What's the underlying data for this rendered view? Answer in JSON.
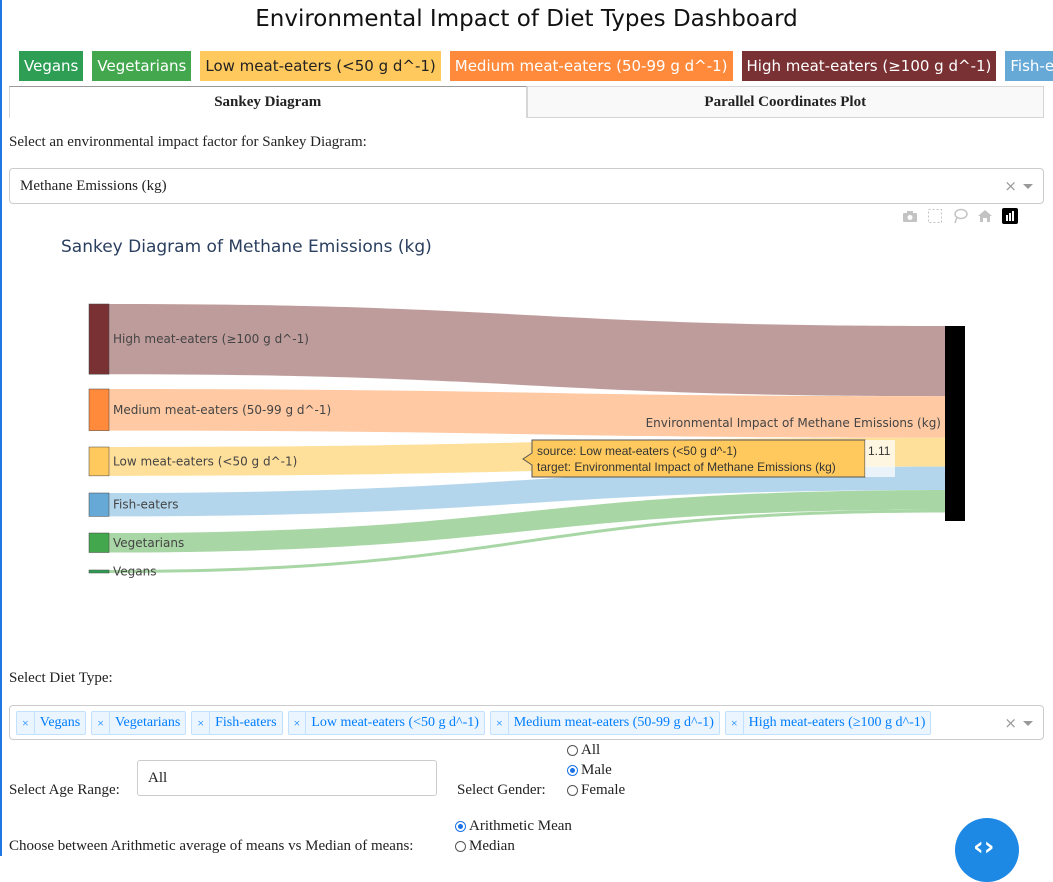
{
  "title": "Environmental Impact of Diet Types Dashboard",
  "legend": [
    {
      "label": "Vegans",
      "color": "#2e9e55"
    },
    {
      "label": "Vegetarians",
      "color": "#43a84d"
    },
    {
      "label": "Low meat-eaters (<50 g d^-1)",
      "color": "#ffc95e",
      "dark_text": true
    },
    {
      "label": "Medium meat-eaters (50-99 g d^-1)",
      "color": "#ff8a3c"
    },
    {
      "label": "High meat-eaters (≥100 g d^-1)",
      "color": "#7a3134"
    },
    {
      "label": "Fish-eaters",
      "color": "#66a9d6"
    }
  ],
  "tabs": {
    "sankey": "Sankey Diagram",
    "parallel": "Parallel Coordinates Plot"
  },
  "factor": {
    "label": "Select an environmental impact factor for Sankey Diagram:",
    "value": "Methane Emissions (kg)"
  },
  "chart_data": {
    "type": "sankey",
    "title": "Sankey Diagram of Methane Emissions (kg)",
    "target": "Environmental Impact of Methane Emissions (kg)",
    "nodes": [
      {
        "label": "High meat-eaters (≥100 g d^-1)",
        "color": "#7a3134",
        "link_color": "#bf9c9c",
        "value": 2.7
      },
      {
        "label": "Medium meat-eaters (50-99 g d^-1)",
        "color": "#ff8a3c",
        "link_color": "#ffc9a3",
        "value": 1.6
      },
      {
        "label": "Low meat-eaters (<50 g d^-1)",
        "color": "#ffc95e",
        "link_color": "#ffe09a",
        "value": 1.11
      },
      {
        "label": "Fish-eaters",
        "color": "#66a9d6",
        "link_color": "#b4d6ec",
        "value": 0.9
      },
      {
        "label": "Vegetarians",
        "color": "#43a84d",
        "link_color": "#a8d7a5",
        "value": 0.75
      },
      {
        "label": "Vegans",
        "color": "#2e9e55",
        "link_color": "#a8d7a5",
        "value": 0.1
      }
    ],
    "tooltip": {
      "source": "source: Low meat-eaters (<50 g d^-1)",
      "target": "target: Environmental Impact of Methane Emissions (kg)",
      "value": "1.11"
    }
  },
  "filters": {
    "diet_label": "Select Diet Type:",
    "diet_chips": [
      "Vegans",
      "Vegetarians",
      "Fish-eaters",
      "Low meat-eaters (<50 g d^-1)",
      "Medium meat-eaters (50-99 g d^-1)",
      "High meat-eaters (≥100 g d^-1)"
    ],
    "age_label": "Select Age Range:",
    "age_value": "All",
    "gender_label": "Select Gender:",
    "gender_options": [
      "All",
      "Male",
      "Female"
    ],
    "gender_selected": "Male",
    "avg_label": "Choose between Arithmetic average of means vs Median of means:",
    "avg_options": [
      "Arithmetic Mean",
      "Median"
    ],
    "avg_selected": "Arithmetic Mean"
  }
}
